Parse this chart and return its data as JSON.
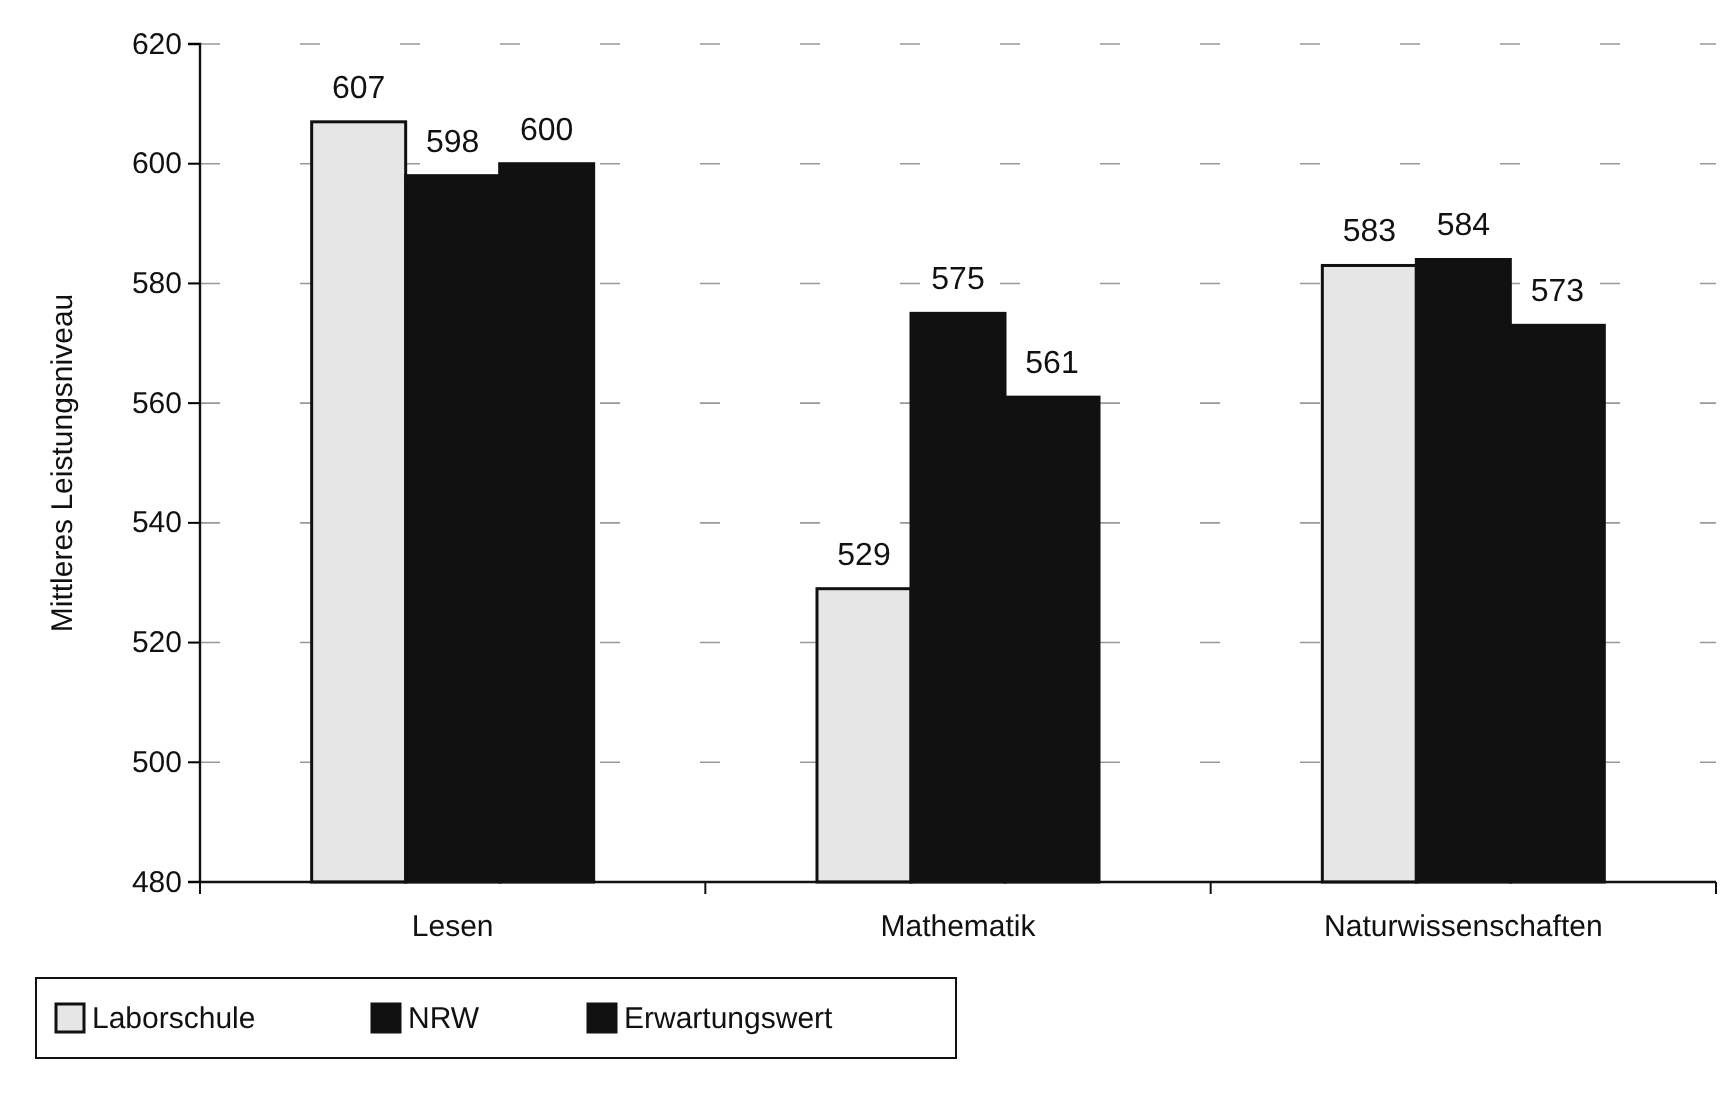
{
  "chart_data": {
    "type": "bar",
    "ylabel": "Mittleres Leistungsniveau",
    "categories": [
      "Lesen",
      "Mathematik",
      "Naturwissenschaften"
    ],
    "series": [
      {
        "name": "Laborschule",
        "color": "#e6e6e6",
        "values": [
          607,
          529,
          583
        ]
      },
      {
        "name": "NRW",
        "color": "#111111",
        "values": [
          598,
          575,
          584
        ]
      },
      {
        "name": "Erwartungswert",
        "color": "#111111",
        "values": [
          600,
          561,
          573
        ]
      }
    ],
    "ylim": [
      480,
      620
    ],
    "yticks": [
      480,
      500,
      520,
      540,
      560,
      580,
      600,
      620
    ],
    "grid": "y",
    "legend": "bottom",
    "data_labels": true
  }
}
